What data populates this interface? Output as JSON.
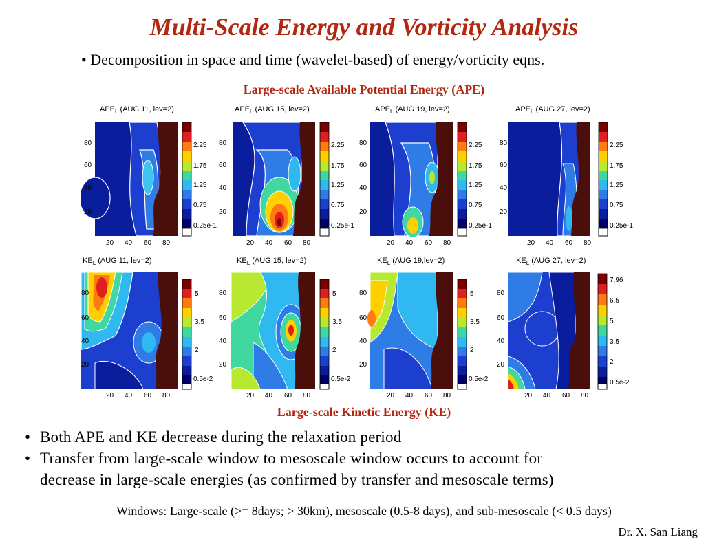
{
  "slide": {
    "title": "Multi-Scale Energy and Vorticity Analysis",
    "subtitle_bullet": "Decomposition in space and time (wavelet-based) of energy/vorticity eqns.",
    "ape_caption": "Large-scale Available Potential Energy (APE)",
    "ke_caption": "Large-scale Kinetic Energy (KE)",
    "bullets": [
      "Both APE and KE decrease during the relaxation period",
      "Transfer from large-scale window to mesoscale window occurs to account for",
      "decrease in large-scale energies (as confirmed by transfer and mesoscale terms)"
    ],
    "windows_note": "Windows: Large-scale (>= 8days; > 30km), mesoscale (0.5-8 days), and sub-mesoscale (< 0.5 days)",
    "author": "Dr. X. San Liang"
  },
  "panels": {
    "ape": [
      {
        "prefix": "APE",
        "sub": "L",
        "rest": " (AUG 11, lev=2)",
        "yticks": [
          "80",
          "60",
          "40",
          "20"
        ],
        "xticks": [
          "20",
          "40",
          "60",
          "80"
        ],
        "cbar": [
          "2.25",
          "1.75",
          "1.25",
          "0.75",
          "0.25e-1"
        ]
      },
      {
        "prefix": "APE",
        "sub": "L",
        "rest": " (AUG 15, lev=2)",
        "yticks": [
          "80",
          "60",
          "40",
          "20"
        ],
        "xticks": [
          "20",
          "40",
          "60",
          "80"
        ],
        "cbar": [
          "2.25",
          "1.75",
          "1.25",
          "0.75",
          "0.25e-1"
        ]
      },
      {
        "prefix": "APE",
        "sub": "L",
        "rest": " (AUG 19, lev=2)",
        "yticks": [
          "80",
          "60",
          "40",
          "20"
        ],
        "xticks": [
          "20",
          "40",
          "60",
          "80"
        ],
        "cbar": [
          "2.25",
          "1.75",
          "1.25",
          "0.75",
          "0.25e-1"
        ]
      },
      {
        "prefix": "APE",
        "sub": "L",
        "rest": " (AUG 27, lev=2)",
        "yticks": [
          "80",
          "60",
          "40",
          "20"
        ],
        "xticks": [
          "20",
          "40",
          "60",
          "80"
        ],
        "cbar": [
          "2.25",
          "1.75",
          "1.25",
          "0.75",
          "0.25e-1"
        ]
      }
    ],
    "ke": [
      {
        "prefix": "KE",
        "sub": "L",
        "rest": " (AUG 11, lev=2)",
        "yticks": [
          "80",
          "60",
          "40",
          "20"
        ],
        "xticks": [
          "20",
          "40",
          "60",
          "80"
        ],
        "cbar": [
          "5",
          "3.5",
          "2",
          "0.5e-2"
        ]
      },
      {
        "prefix": "KE",
        "sub": "L",
        "rest": " (AUG 15, lev=2)",
        "yticks": [
          "80",
          "60",
          "40",
          "20"
        ],
        "xticks": [
          "20",
          "40",
          "60",
          "80"
        ],
        "cbar": [
          "5",
          "3.5",
          "2",
          "0.5e-2"
        ]
      },
      {
        "prefix": "KE",
        "sub": "L",
        "rest": " (AUG 19,lev=2)",
        "yticks": [
          "80",
          "60",
          "40",
          "20"
        ],
        "xticks": [
          "20",
          "40",
          "60",
          "80"
        ],
        "cbar": [
          "5",
          "3.5",
          "2",
          "0.5e-2"
        ]
      },
      {
        "prefix": "KE",
        "sub": "L",
        "rest": " (AUG 27, lev=2)",
        "yticks": [
          "80",
          "60",
          "40",
          "20"
        ],
        "xticks": [
          "20",
          "40",
          "60",
          "80"
        ],
        "cbar": [
          "7.96",
          "6.5",
          "5",
          "3.5",
          "2",
          "0.5e-2"
        ]
      }
    ]
  }
}
